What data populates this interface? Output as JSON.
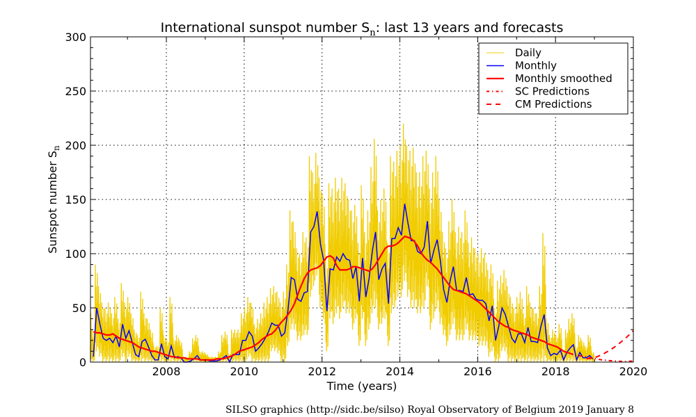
{
  "chart_data": {
    "type": "line",
    "title": "International sunspot number S",
    "title_subscript": "n",
    "title_suffix": ": last 13 years and forecasts",
    "xlabel": "Time (years)",
    "ylabel": "Sunspot number S",
    "ylabel_subscript": "n",
    "xlim": [
      2006.05,
      2020.0
    ],
    "ylim": [
      0,
      300
    ],
    "xticks": [
      2008,
      2010,
      2012,
      2014,
      2016,
      2018,
      2020
    ],
    "yticks": [
      0,
      50,
      100,
      150,
      200,
      250,
      300
    ],
    "grid": true,
    "legend_position": "top-right",
    "start_year": 2006,
    "colors": {
      "daily": "#f0cc00",
      "monthly": "#0000ff",
      "smoothed": "#ff0000",
      "sc": "#ff0000",
      "cm": "#ff0000"
    },
    "legend": [
      "Daily",
      "Monthly",
      "Monthly smoothed",
      "SC Predictions",
      "CM Predictions"
    ],
    "daily_monthly_max": [
      50,
      30,
      90,
      70,
      55,
      50,
      55,
      45,
      60,
      40,
      73,
      55,
      60,
      45,
      30,
      25,
      65,
      45,
      40,
      30,
      15,
      15,
      50,
      25,
      20,
      60,
      22,
      25,
      20,
      5,
      5,
      10,
      22,
      25,
      10,
      10,
      8,
      5,
      5,
      5,
      10,
      25,
      28,
      8,
      30,
      30,
      30,
      45,
      50,
      60,
      55,
      35,
      40,
      45,
      55,
      60,
      68,
      70,
      65,
      55,
      65,
      90,
      140,
      130,
      105,
      100,
      120,
      115,
      190,
      175,
      193,
      170,
      155,
      95,
      165,
      160,
      170,
      160,
      170,
      165,
      150,
      140,
      145,
      110,
      163,
      120,
      140,
      180,
      206,
      140,
      150,
      160,
      110,
      190,
      185,
      195,
      200,
      220,
      200,
      195,
      198,
      175,
      175,
      190,
      195,
      160,
      175,
      190,
      150,
      120,
      105,
      130,
      150,
      120,
      125,
      120,
      140,
      110,
      115,
      105,
      100,
      105,
      100,
      85,
      90,
      50,
      75,
      80,
      85,
      70,
      60,
      50,
      60,
      65,
      45,
      70,
      55,
      50,
      45,
      70,
      119,
      40,
      25,
      30,
      25,
      35,
      12,
      30,
      40,
      45,
      15,
      25,
      20,
      15,
      25,
      10
    ],
    "daily_monthly_min": [
      0,
      0,
      10,
      5,
      0,
      0,
      0,
      0,
      0,
      0,
      5,
      0,
      5,
      0,
      0,
      0,
      0,
      0,
      0,
      0,
      0,
      0,
      0,
      0,
      0,
      0,
      0,
      0,
      0,
      0,
      0,
      0,
      0,
      0,
      0,
      0,
      0,
      0,
      0,
      0,
      0,
      0,
      0,
      0,
      0,
      0,
      0,
      0,
      0,
      5,
      0,
      0,
      0,
      0,
      0,
      0,
      10,
      10,
      8,
      0,
      0,
      15,
      30,
      30,
      20,
      20,
      25,
      25,
      60,
      70,
      80,
      50,
      40,
      10,
      40,
      35,
      45,
      40,
      50,
      45,
      45,
      30,
      40,
      15,
      40,
      15,
      30,
      45,
      50,
      30,
      35,
      40,
      15,
      45,
      50,
      60,
      60,
      75,
      60,
      50,
      50,
      45,
      45,
      50,
      70,
      30,
      40,
      50,
      35,
      25,
      15,
      25,
      35,
      20,
      20,
      20,
      30,
      20,
      20,
      20,
      15,
      15,
      15,
      5,
      10,
      0,
      0,
      10,
      10,
      0,
      0,
      0,
      0,
      0,
      0,
      0,
      0,
      0,
      0,
      0,
      0,
      0,
      0,
      0,
      0,
      0,
      0,
      0,
      0,
      0,
      0,
      0,
      0,
      0,
      0,
      0
    ],
    "monthly": [
      20,
      5,
      50,
      35,
      22,
      20,
      22,
      18,
      24,
      14,
      35,
      22,
      29,
      18,
      7,
      5,
      19,
      21,
      14,
      6,
      2,
      2,
      17,
      5,
      3,
      15,
      4,
      5,
      4,
      0,
      0,
      1,
      3,
      6,
      2,
      2,
      2,
      1,
      1,
      1,
      2,
      4,
      6,
      0,
      7,
      7,
      7,
      20,
      20,
      28,
      24,
      10,
      13,
      17,
      22,
      28,
      36,
      34,
      34,
      24,
      27,
      48,
      78,
      76,
      58,
      56,
      64,
      65,
      120,
      125,
      139,
      109,
      94,
      47,
      86,
      85,
      97,
      93,
      100,
      95,
      94,
      77,
      88,
      56,
      96,
      60,
      77,
      102,
      120,
      76,
      86,
      91,
      54,
      114,
      114,
      124,
      117,
      146,
      128,
      112,
      112,
      102,
      100,
      106,
      130,
      91,
      103,
      113,
      93,
      67,
      55,
      75,
      88,
      66,
      66,
      65,
      78,
      62,
      63,
      58,
      57,
      57,
      54,
      38,
      52,
      20,
      33,
      50,
      44,
      33,
      22,
      18,
      26,
      26,
      18,
      32,
      19,
      19,
      18,
      33,
      44,
      13,
      6,
      8,
      7,
      11,
      2,
      9,
      13,
      16,
      2,
      9,
      4,
      4,
      6,
      3
    ],
    "smoothed": [
      31,
      28,
      27,
      27,
      26,
      25,
      25,
      26,
      24,
      22,
      21,
      20,
      19,
      18,
      16,
      14,
      13,
      12,
      11,
      10,
      10,
      9,
      8,
      7,
      6,
      5,
      5,
      4,
      4,
      4,
      3,
      3,
      3,
      3,
      2,
      2,
      2,
      2,
      2,
      3,
      3,
      3,
      4,
      5,
      6,
      8,
      10,
      11,
      12,
      13,
      14,
      16,
      18,
      21,
      23,
      25,
      26,
      29,
      33,
      37,
      40,
      44,
      48,
      54,
      62,
      70,
      77,
      82,
      85,
      86,
      87,
      89,
      93,
      97,
      98,
      96,
      89,
      85,
      85,
      85,
      86,
      88,
      88,
      87,
      86,
      85,
      84,
      86,
      90,
      95,
      100,
      105,
      107,
      107,
      108,
      110,
      113,
      116,
      115,
      114,
      111,
      107,
      101,
      97,
      94,
      92,
      89,
      86,
      82,
      78,
      74,
      70,
      67,
      66,
      65,
      64,
      63,
      61,
      59,
      57,
      55,
      52,
      49,
      46,
      43,
      40,
      37,
      35,
      33,
      32,
      30,
      29,
      28,
      27,
      26,
      25,
      23,
      22,
      21,
      20,
      19,
      17,
      16,
      15,
      14,
      12,
      10,
      9,
      8,
      7
    ],
    "sc_predictions": {
      "x": [
        2018.6,
        2018.9,
        2019.2,
        2019.5,
        2019.8,
        2020.0
      ],
      "y": [
        6,
        4,
        2,
        1,
        0.5,
        1
      ]
    },
    "cm_predictions": {
      "x": [
        2018.8,
        2019.0,
        2019.2,
        2019.4,
        2019.6,
        2019.8,
        2020.0
      ],
      "y": [
        3,
        4,
        7,
        11,
        16,
        22,
        29
      ]
    }
  },
  "footer": "SILSO graphics (http://sidc.be/silso)  Royal Observatory of Belgium  2019 January 8"
}
